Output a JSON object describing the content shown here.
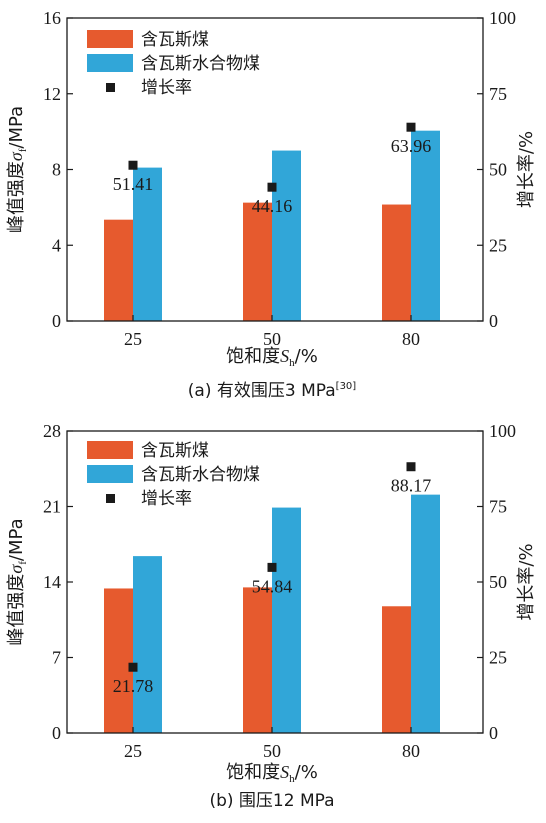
{
  "colors": {
    "coal": "#E65A2E",
    "hydrate": "#31A6D8",
    "rate": "#1a1a1a"
  },
  "chart_data": [
    {
      "type": "bar",
      "caption": "(a) 有效围压3 MPa",
      "caption_ref": "[30]",
      "categories": [
        "25",
        "50",
        "80"
      ],
      "xlabel": {
        "prefix": "饱和度",
        "symbol": "S",
        "sub": "h",
        "suffix": "/%"
      },
      "ylabel": {
        "prefix": "峰值强度",
        "symbol": "σ",
        "sub": "f",
        "suffix": "/MPa"
      },
      "y2label": "增长率/%",
      "ylim": [
        0,
        16
      ],
      "yticks": [
        0,
        4,
        8,
        12,
        16
      ],
      "y2lim": [
        0,
        100
      ],
      "y2ticks": [
        0,
        25,
        50,
        75,
        100
      ],
      "legend_position": "top-left",
      "series": [
        {
          "name": "含瓦斯煤",
          "kind": "bar",
          "color_key": "coal",
          "values": [
            5.35,
            6.25,
            6.15
          ]
        },
        {
          "name": "含瓦斯水合物煤",
          "kind": "bar",
          "color_key": "hydrate",
          "values": [
            8.1,
            9.0,
            10.05
          ]
        },
        {
          "name": "增长率",
          "kind": "point",
          "color_key": "rate",
          "axis": "right",
          "values": [
            51.41,
            44.16,
            63.96
          ]
        }
      ],
      "point_labels": [
        "51.41",
        "44.16",
        "63.96"
      ],
      "point_label_pos": [
        "below",
        "below",
        "below"
      ]
    },
    {
      "type": "bar",
      "caption": "(b) 围压12 MPa",
      "caption_ref": "",
      "categories": [
        "25",
        "50",
        "80"
      ],
      "xlabel": {
        "prefix": "饱和度",
        "symbol": "S",
        "sub": "h",
        "suffix": "/%"
      },
      "ylabel": {
        "prefix": "峰值强度",
        "symbol": "σ",
        "sub": "f",
        "suffix": "/MPa"
      },
      "y2label": "增长率/%",
      "ylim": [
        0,
        28
      ],
      "yticks": [
        0,
        7,
        14,
        21,
        28
      ],
      "y2lim": [
        0,
        100
      ],
      "y2ticks": [
        0,
        25,
        50,
        75,
        100
      ],
      "legend_position": "top-left",
      "series": [
        {
          "name": "含瓦斯煤",
          "kind": "bar",
          "color_key": "coal",
          "values": [
            13.4,
            13.5,
            11.75
          ]
        },
        {
          "name": "含瓦斯水合物煤",
          "kind": "bar",
          "color_key": "hydrate",
          "values": [
            16.4,
            20.9,
            22.1
          ]
        },
        {
          "name": "增长率",
          "kind": "point",
          "color_key": "rate",
          "axis": "right",
          "values": [
            21.78,
            54.84,
            88.17
          ]
        }
      ],
      "point_labels": [
        "21.78",
        "54.84",
        "88.17"
      ],
      "point_label_pos": [
        "below",
        "below",
        "below"
      ]
    }
  ]
}
